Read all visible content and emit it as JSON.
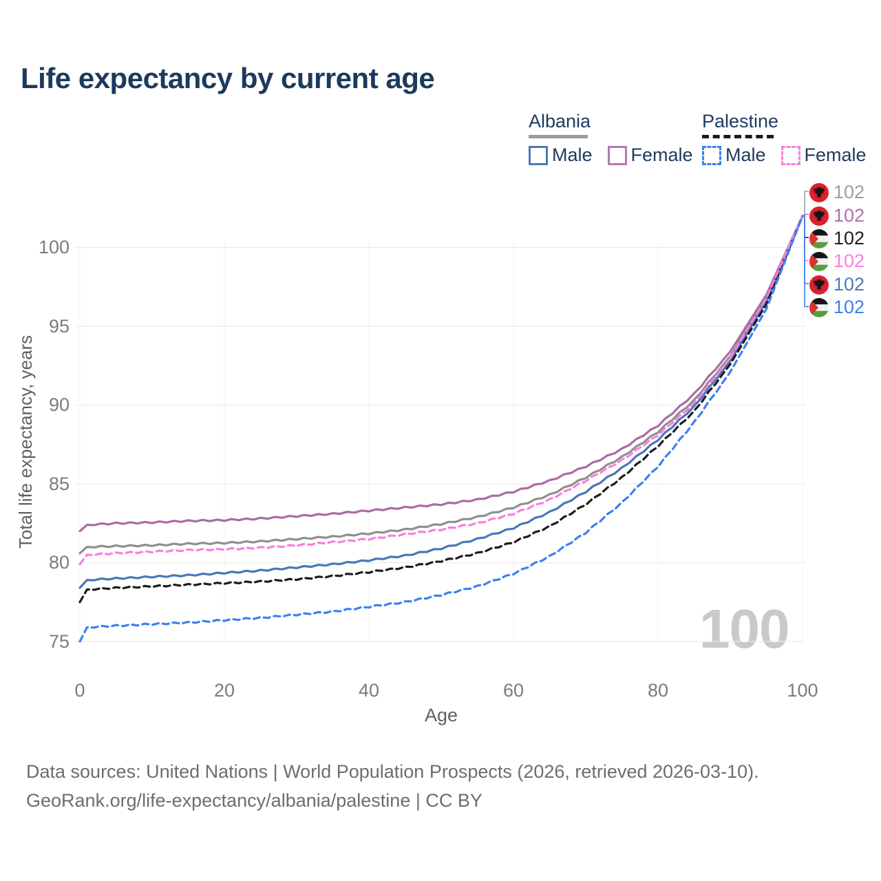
{
  "title": "Life expectancy by current age",
  "legend": {
    "groups": [
      {
        "label": "Albania",
        "line_style": "solid",
        "underline_color": "#9a9a9a",
        "items": [
          {
            "label": "Male",
            "color": "#4d7ab8"
          },
          {
            "label": "Female",
            "color": "#b477b2"
          }
        ]
      },
      {
        "label": "Palestine",
        "line_style": "dashed",
        "underline_color": "#1a1a1a",
        "items": [
          {
            "label": "Male",
            "color": "#3c80f1"
          },
          {
            "label": "Female",
            "color": "#fb7ddf"
          }
        ]
      }
    ]
  },
  "watermark": "100",
  "chart_data": {
    "type": "line",
    "title": "Life expectancy by current age",
    "xlabel": "Age",
    "ylabel": "Total life expectancy, years",
    "xlim": [
      0,
      100
    ],
    "ylim": [
      74.5,
      103
    ],
    "grid": true,
    "x_ticks": [
      0,
      20,
      40,
      60,
      80,
      100
    ],
    "y_ticks": [
      75,
      80,
      85,
      90,
      95,
      100
    ],
    "x": [
      0,
      1,
      5,
      10,
      15,
      20,
      25,
      30,
      35,
      40,
      45,
      50,
      55,
      60,
      65,
      70,
      75,
      80,
      85,
      90,
      95,
      100
    ],
    "series": [
      {
        "id": "albania-total",
        "name": "Albania",
        "country": "Albania",
        "sex": "total",
        "color": "#8f8f8f",
        "dashed": false,
        "values": [
          80.6,
          81.0,
          81.05,
          81.1,
          81.2,
          81.25,
          81.35,
          81.5,
          81.65,
          81.85,
          82.1,
          82.45,
          82.9,
          83.5,
          84.3,
          85.4,
          86.7,
          88.3,
          90.3,
          93.1,
          96.8,
          102
        ]
      },
      {
        "id": "albania-female",
        "name": "Albania Female",
        "country": "Albania",
        "sex": "female",
        "color": "#a96ba3",
        "dashed": false,
        "values": [
          82.0,
          82.4,
          82.5,
          82.55,
          82.65,
          82.7,
          82.8,
          82.95,
          83.1,
          83.3,
          83.5,
          83.7,
          84.0,
          84.5,
          85.2,
          86.1,
          87.2,
          88.7,
          90.7,
          93.4,
          97.0,
          102
        ]
      },
      {
        "id": "palestine-total",
        "name": "Palestine",
        "country": "Palestine",
        "sex": "total",
        "color": "#1c1c1c",
        "dashed": true,
        "values": [
          77.5,
          78.3,
          78.4,
          78.5,
          78.6,
          78.7,
          78.8,
          78.95,
          79.15,
          79.4,
          79.7,
          80.1,
          80.6,
          81.3,
          82.3,
          83.7,
          85.4,
          87.4,
          89.6,
          92.6,
          96.4,
          102
        ]
      },
      {
        "id": "palestine-female",
        "name": "Palestine Female",
        "country": "Palestine",
        "sex": "female",
        "color": "#fb7ddf",
        "dashed": true,
        "values": [
          79.9,
          80.5,
          80.6,
          80.7,
          80.8,
          80.85,
          80.95,
          81.1,
          81.3,
          81.5,
          81.8,
          82.1,
          82.5,
          83.1,
          84.0,
          85.2,
          86.5,
          88.1,
          90.1,
          93.0,
          96.8,
          102
        ]
      },
      {
        "id": "albania-male",
        "name": "Albania Male",
        "country": "Albania",
        "sex": "male",
        "color": "#4a76b8",
        "dashed": false,
        "values": [
          78.4,
          78.9,
          79.0,
          79.1,
          79.2,
          79.35,
          79.5,
          79.7,
          79.9,
          80.15,
          80.45,
          80.9,
          81.5,
          82.2,
          83.2,
          84.5,
          86.0,
          87.8,
          89.9,
          92.8,
          96.6,
          102
        ]
      },
      {
        "id": "palestine-male",
        "name": "Palestine Male",
        "country": "Palestine",
        "sex": "male",
        "color": "#3c80f1",
        "dashed": true,
        "values": [
          75.0,
          75.9,
          76.0,
          76.1,
          76.2,
          76.35,
          76.5,
          76.7,
          76.9,
          77.2,
          77.5,
          77.95,
          78.5,
          79.3,
          80.4,
          81.9,
          83.8,
          86.1,
          88.9,
          92.1,
          96.1,
          102
        ]
      }
    ],
    "end_labels": [
      {
        "series_id": "albania-total",
        "flag": "albania",
        "value": "102",
        "color": "#9e9e9e"
      },
      {
        "series_id": "albania-female",
        "flag": "albania",
        "value": "102",
        "color": "#b06fab"
      },
      {
        "series_id": "palestine-total",
        "flag": "palestine",
        "value": "102",
        "color": "#1d1d1d"
      },
      {
        "series_id": "palestine-female",
        "flag": "palestine",
        "value": "102",
        "color": "#fb7ddf"
      },
      {
        "series_id": "albania-male",
        "flag": "albania",
        "value": "102",
        "color": "#4d7ab8"
      },
      {
        "series_id": "palestine-male",
        "flag": "palestine",
        "value": "102",
        "color": "#3c80f1"
      }
    ],
    "legend_position": "top-right"
  },
  "footer": {
    "line1": "Data sources: United Nations | World Population Prospects (2026, retrieved 2026-03-10).",
    "line2": "GeoRank.org/life-expectancy/albania/palestine | CC BY"
  }
}
